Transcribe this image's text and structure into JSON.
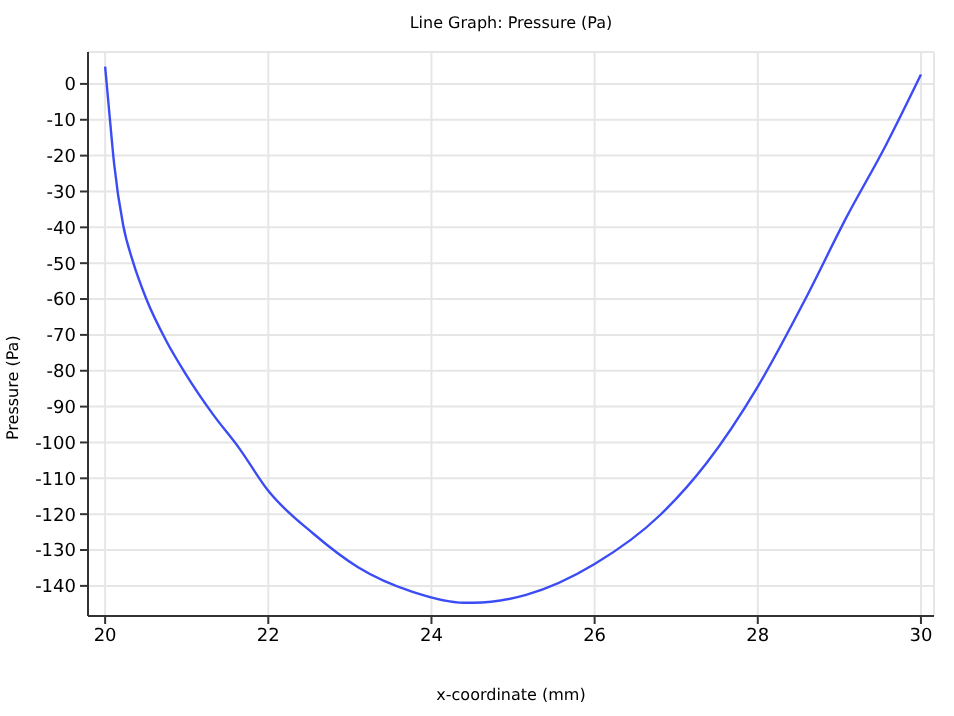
{
  "chart_data": {
    "type": "line",
    "title": "Line Graph: Pressure (Pa)",
    "xlabel": "x-coordinate (mm)",
    "ylabel": "Pressure (Pa)",
    "series": [
      {
        "color": "#3b4cf5",
        "x": [
          20,
          20.06,
          20.11,
          20.22,
          20.34,
          20.5,
          20.75,
          20.99,
          21.32,
          21.64,
          22.0,
          22.55,
          23.1,
          23.76,
          24.4,
          24.51,
          25.16,
          26.0,
          26.8,
          27.37,
          28.0,
          28.59,
          29.08,
          29.57,
          30.0
        ],
        "values": [
          4.8,
          -10.2,
          -22.2,
          -39.3,
          -49.5,
          -59.7,
          -71.7,
          -81,
          -92.1,
          -101.5,
          -113.5,
          -125.4,
          -134.8,
          -141.6,
          -144.7,
          -144.7,
          -142.5,
          -133.9,
          -120.3,
          -105.8,
          -84.4,
          -59.7,
          -37.5,
          -17.1,
          2.6
        ]
      }
    ],
    "xlim": [
      19.79,
      30.16
    ],
    "xticks": [
      20,
      22,
      24,
      26,
      28,
      30
    ],
    "ylim": [
      -148.4,
      8.9
    ],
    "yticks": [
      0,
      -10,
      -20,
      -30,
      -40,
      -50,
      -60,
      -70,
      -80,
      -90,
      -100,
      -110,
      -120,
      -130,
      -140
    ],
    "grid": true,
    "marker": "none",
    "line_style": "solid"
  }
}
